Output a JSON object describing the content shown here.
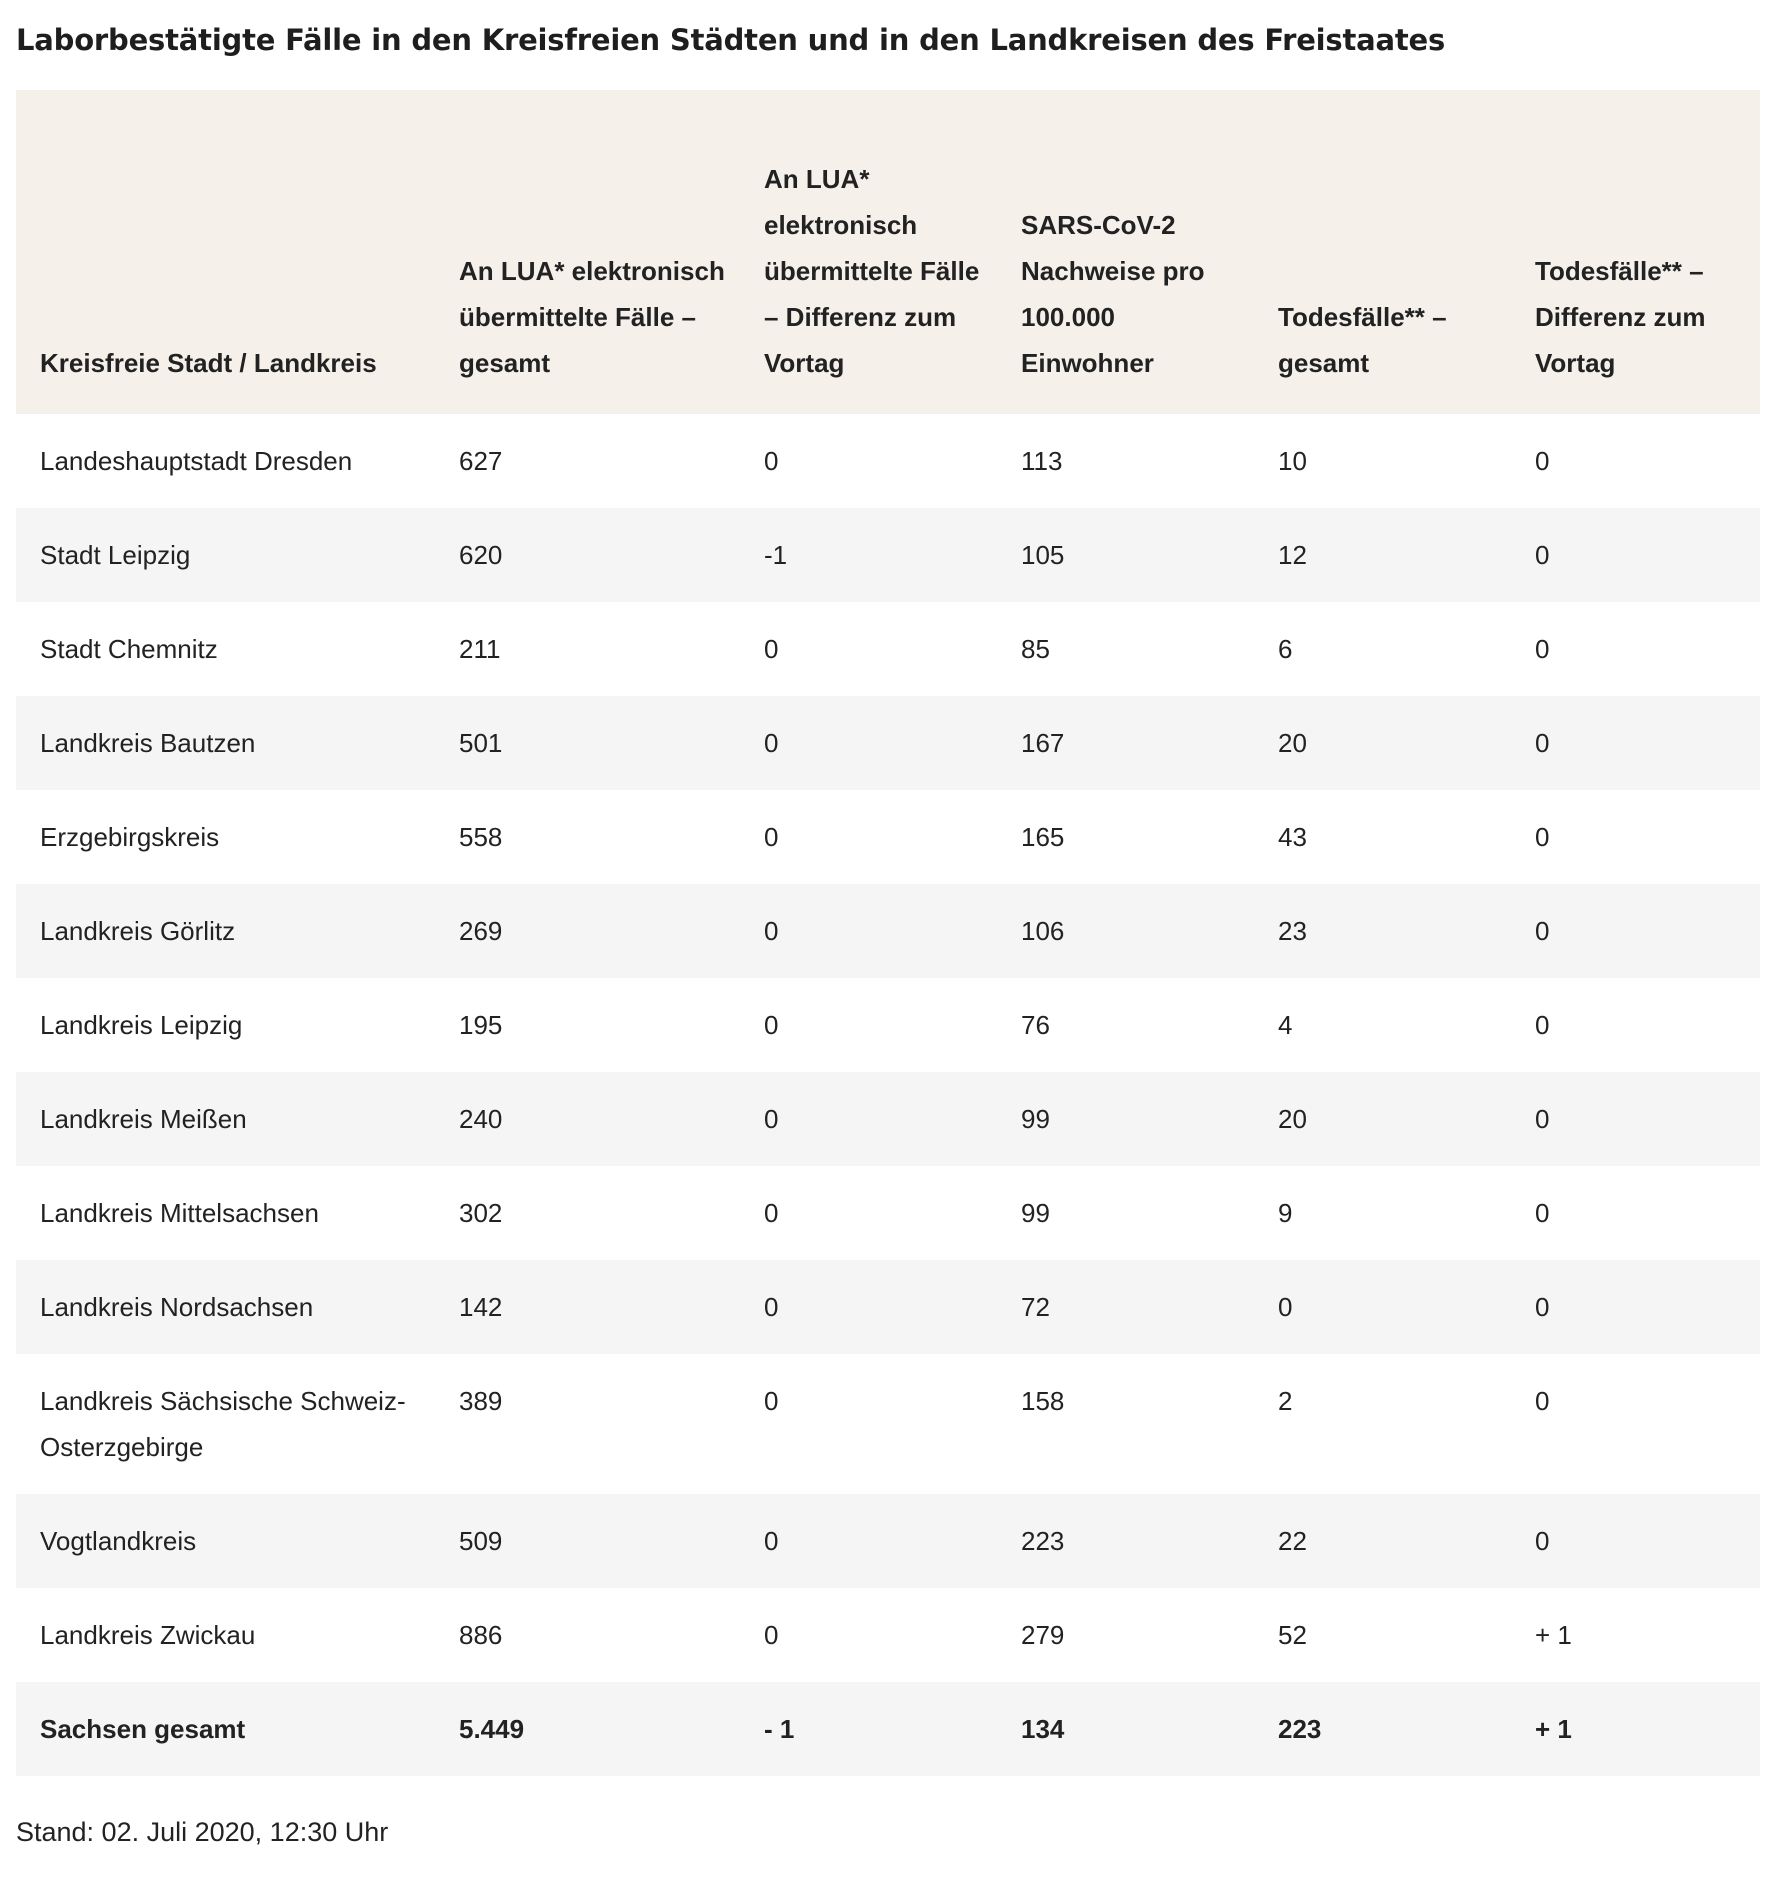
{
  "title": "Laborbestätigte Fälle in den Kreisfreien Städten und in den Landkreisen des Freistaates",
  "table": {
    "headers": [
      "Kreisfreie Stadt / Landkreis",
      "An LUA* elektronisch übermittelte Fälle – gesamt",
      "An LUA* elektronisch übermittelte Fälle – Differenz zum Vortag",
      "SARS-CoV-2 Nachweise pro 100.000 Einwohner",
      "Todesfälle** – gesamt",
      "Todesfälle** – Differenz zum Vortag"
    ],
    "rows": [
      [
        "Landeshauptstadt Dresden",
        "627",
        "0",
        "113",
        "10",
        "0"
      ],
      [
        "Stadt Leipzig",
        "620",
        "-1",
        "105",
        "12",
        "0"
      ],
      [
        "Stadt Chemnitz",
        "211",
        "0",
        "85",
        "6",
        "0"
      ],
      [
        "Landkreis Bautzen",
        "501",
        "0",
        "167",
        "20",
        "0"
      ],
      [
        "Erzgebirgskreis",
        "558",
        "0",
        "165",
        "43",
        "0"
      ],
      [
        "Landkreis Görlitz",
        "269",
        "0",
        "106",
        "23",
        "0"
      ],
      [
        "Landkreis Leipzig",
        "195",
        "0",
        "76",
        "4",
        "0"
      ],
      [
        "Landkreis Meißen",
        "240",
        "0",
        "99",
        "20",
        "0"
      ],
      [
        "Landkreis Mittelsachsen",
        "302",
        "0",
        "99",
        "9",
        "0"
      ],
      [
        "Landkreis Nordsachsen",
        "142",
        "0",
        "72",
        "0",
        "0"
      ],
      [
        "Landkreis Sächsische Schweiz-Osterzgebirge",
        "389",
        "0",
        "158",
        "2",
        "0"
      ],
      [
        "Vogtlandkreis",
        "509",
        "0",
        "223",
        "22",
        "0"
      ],
      [
        "Landkreis Zwickau",
        "886",
        "0",
        "279",
        "52",
        "+ 1"
      ]
    ],
    "total": [
      "Sachsen gesamt",
      "5.449",
      "- 1",
      "134",
      "223",
      "+ 1"
    ]
  },
  "footnote": "Stand: 02. Juli 2020, 12:30 Uhr",
  "colors": {
    "header_background": "#f6f0eb",
    "striped_row_background": "#f5f5f5",
    "text": "#222222"
  }
}
